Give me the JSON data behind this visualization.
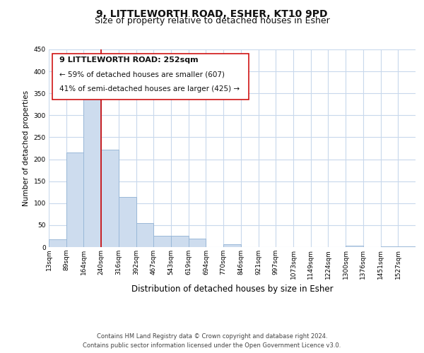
{
  "title": "9, LITTLEWORTH ROAD, ESHER, KT10 9PD",
  "subtitle": "Size of property relative to detached houses in Esher",
  "xlabel": "Distribution of detached houses by size in Esher",
  "ylabel": "Number of detached properties",
  "bin_labels": [
    "13sqm",
    "89sqm",
    "164sqm",
    "240sqm",
    "316sqm",
    "392sqm",
    "467sqm",
    "543sqm",
    "619sqm",
    "694sqm",
    "770sqm",
    "846sqm",
    "921sqm",
    "997sqm",
    "1073sqm",
    "1149sqm",
    "1224sqm",
    "1300sqm",
    "1376sqm",
    "1451sqm",
    "1527sqm"
  ],
  "bar_heights": [
    18,
    215,
    340,
    222,
    114,
    54,
    26,
    25,
    20,
    0,
    7,
    0,
    0,
    0,
    0,
    0,
    0,
    4,
    0,
    2,
    2
  ],
  "bar_color": "#cddcee",
  "bar_edge_color": "#9ab8d8",
  "vline_x": 3,
  "vline_color": "#cc0000",
  "annotation_line1": "9 LITTLEWORTH ROAD: 252sqm",
  "annotation_line2": "← 59% of detached houses are smaller (607)",
  "annotation_line3": "41% of semi-detached houses are larger (425) →",
  "ylim": [
    0,
    450
  ],
  "yticks": [
    0,
    50,
    100,
    150,
    200,
    250,
    300,
    350,
    400,
    450
  ],
  "footer_text": "Contains HM Land Registry data © Crown copyright and database right 2024.\nContains public sector information licensed under the Open Government Licence v3.0.",
  "background_color": "#ffffff",
  "grid_color": "#c8d8ec",
  "title_fontsize": 10,
  "subtitle_fontsize": 9,
  "xlabel_fontsize": 8.5,
  "ylabel_fontsize": 7.5,
  "tick_fontsize": 6.5,
  "annotation_fontsize": 7.5,
  "footer_fontsize": 6.0
}
